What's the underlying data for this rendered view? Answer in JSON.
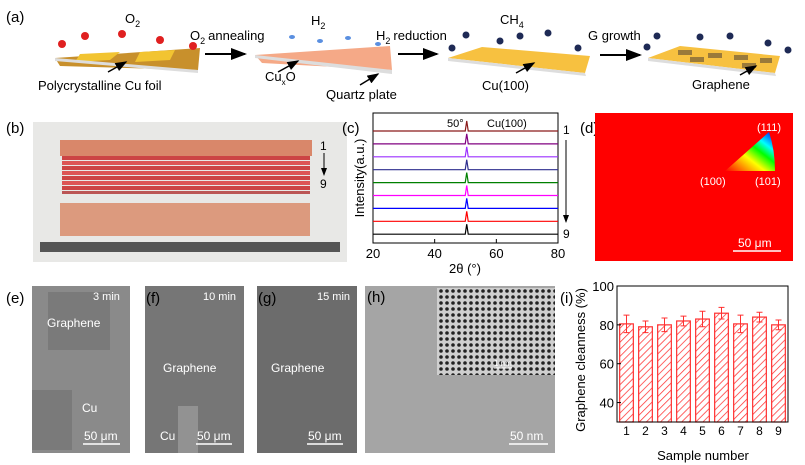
{
  "panel_a": {
    "label": "(a)",
    "o2": "O",
    "o2_sub": "2",
    "h2": "H",
    "h2_sub": "2",
    "ch4": "CH",
    "ch4_sub": "4",
    "step1": "annealing",
    "step1_prefix": "O",
    "step1_sub": "2",
    "step2": "reduction",
    "step2_prefix": "H",
    "step2_sub": "2",
    "step3": "G growth",
    "foil_label": "Polycrystalline Cu foil",
    "cuxo_label": "Cu",
    "cuxo_sub": "x",
    "cuxo_tail": "O",
    "quartz_label": "Quartz plate",
    "cu100_label": "Cu(100)",
    "graphene_label": "Graphene"
  },
  "panel_b": {
    "label": "(b)",
    "top": "1",
    "bottom": "9"
  },
  "panel_d": {
    "label": "(d)",
    "p111": "(111)",
    "p100": "(100)",
    "p101": "(101)",
    "scale": "50 μm",
    "color": "#ff0000"
  },
  "panel_e": {
    "label": "(e)",
    "time": "3 min",
    "graphene": "Graphene",
    "cu": "Cu",
    "scale": "50 μm"
  },
  "panel_f": {
    "label": "(f)",
    "time": "10 min",
    "graphene": "Graphene",
    "cu": "Cu",
    "scale": "50 μm"
  },
  "panel_g": {
    "label": "(g)",
    "time": "15 min",
    "graphene": "Graphene",
    "scale": "50 μm"
  },
  "panel_h": {
    "label": "(h)",
    "inset_scale": "1 nm",
    "scale": "50 nm"
  },
  "chart_data": [
    {
      "type": "line",
      "panel": "(c)",
      "xlabel": "2θ (°)",
      "ylabel": "Intensity(a.u.)",
      "xlim": [
        20,
        80
      ],
      "xticks": [
        "20",
        "40",
        "60",
        "80"
      ],
      "annotation_peak": "50°",
      "annotation_plane": "Cu(100)",
      "order_start": "1",
      "order_end": "9",
      "peak_position": 50.4,
      "series": [
        {
          "name": "1",
          "color": "#8b1a1a"
        },
        {
          "name": "2",
          "color": "#800080"
        },
        {
          "name": "3",
          "color": "#9b30ff"
        },
        {
          "name": "4",
          "color": "#2f2f8f"
        },
        {
          "name": "5",
          "color": "#008000"
        },
        {
          "name": "6",
          "color": "#ff00ff"
        },
        {
          "name": "7",
          "color": "#0000ff"
        },
        {
          "name": "8",
          "color": "#ff0000"
        },
        {
          "name": "9",
          "color": "#000000"
        }
      ]
    },
    {
      "type": "bar",
      "panel": "(i)",
      "xlabel": "Sample number",
      "ylabel": "Graphene cleanness (%)",
      "ylim": [
        30,
        100
      ],
      "yticks": [
        "40",
        "60",
        "80",
        "100"
      ],
      "categories": [
        "1",
        "2",
        "3",
        "4",
        "5",
        "6",
        "7",
        "8",
        "9"
      ],
      "values": [
        80.5,
        79,
        80,
        82,
        83,
        86,
        80.5,
        84,
        80
      ],
      "errors": [
        4.5,
        3,
        3.5,
        2.5,
        4,
        3,
        4.5,
        2.5,
        2.5
      ],
      "color": "#ff3030"
    }
  ]
}
